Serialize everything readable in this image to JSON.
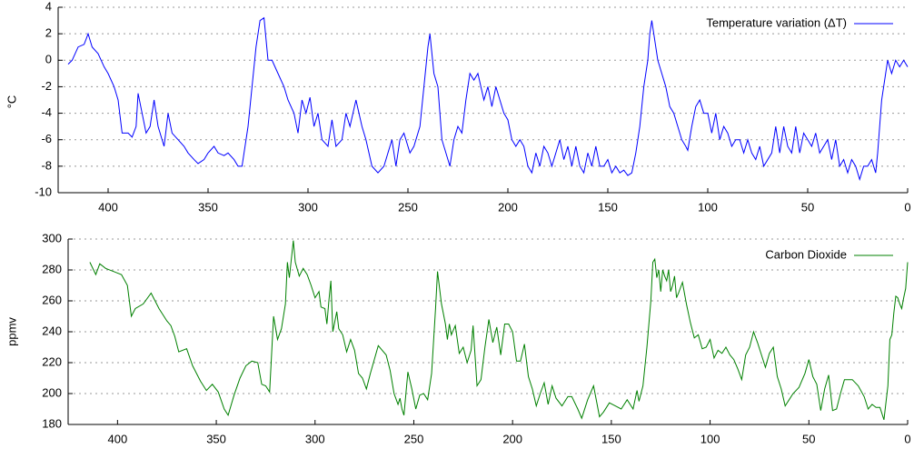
{
  "chart_data": [
    {
      "type": "line",
      "ylabel": "°C",
      "legend": "upper right",
      "grid": true,
      "xlim": [
        425,
        0
      ],
      "ylim": [
        -10,
        4
      ],
      "xticks": [
        400,
        350,
        300,
        250,
        200,
        150,
        100,
        50,
        0
      ],
      "yticks": [
        4,
        2,
        0,
        -2,
        -4,
        -6,
        -8,
        -10
      ],
      "x": [
        420,
        418,
        415,
        412,
        410,
        408,
        405,
        402,
        400,
        397,
        395,
        393,
        390,
        388,
        386,
        385,
        383,
        381,
        379,
        377,
        375,
        372,
        370,
        368,
        365,
        362,
        360,
        357,
        355,
        352,
        350,
        347,
        345,
        342,
        340,
        337,
        335,
        333,
        330,
        328,
        326,
        324,
        322,
        320,
        318,
        315,
        312,
        310,
        307,
        305,
        303,
        301,
        299,
        297,
        295,
        293,
        290,
        288,
        286,
        283,
        281,
        279,
        276,
        273,
        271,
        268,
        265,
        262,
        260,
        258,
        256,
        254,
        252,
        249,
        247,
        244,
        242,
        240,
        239,
        237,
        235,
        233,
        231,
        229,
        227,
        225,
        223,
        221,
        219,
        217,
        215,
        212,
        210,
        208,
        206,
        204,
        202,
        200,
        198,
        196,
        194,
        192,
        190,
        188,
        186,
        184,
        182,
        180,
        178,
        176,
        174,
        172,
        170,
        168,
        166,
        164,
        162,
        160,
        158,
        156,
        154,
        152,
        150,
        148,
        146,
        144,
        142,
        140,
        138,
        136,
        134,
        132,
        130,
        129,
        128,
        127,
        125,
        123,
        121,
        119,
        117,
        115,
        113,
        111,
        110,
        108,
        106,
        104,
        102,
        100,
        98,
        96,
        94,
        92,
        90,
        88,
        86,
        84,
        82,
        80,
        78,
        76,
        74,
        72,
        70,
        68,
        66,
        64,
        62,
        60,
        58,
        56,
        54,
        52,
        50,
        48,
        46,
        44,
        42,
        40,
        38,
        36,
        34,
        32,
        30,
        28,
        26,
        24,
        22,
        20,
        18,
        16,
        15,
        14,
        13,
        12,
        11,
        10,
        8,
        6,
        4,
        2,
        0
      ],
      "series": [
        {
          "name": "Temperature variation (ΔT)",
          "color": "#0000ff",
          "values": [
            -0.3,
            0,
            1,
            1.2,
            2,
            1,
            0.5,
            -0.5,
            -1,
            -2,
            -3,
            -5.5,
            -5.5,
            -5.8,
            -5,
            -2.5,
            -4,
            -5.5,
            -5,
            -3,
            -5,
            -6.5,
            -4,
            -5.5,
            -6,
            -6.5,
            -7,
            -7.5,
            -7.8,
            -7.5,
            -7,
            -6.5,
            -7,
            -7.2,
            -7,
            -7.5,
            -8,
            -8,
            -5,
            -2,
            1,
            3,
            3.2,
            0,
            0,
            -1,
            -2,
            -3,
            -4,
            -5.5,
            -3,
            -4,
            -2.8,
            -5,
            -4,
            -6,
            -6.5,
            -4.5,
            -6.5,
            -6,
            -4,
            -5,
            -3,
            -5,
            -6,
            -8,
            -8.5,
            -8,
            -7,
            -6,
            -8,
            -6,
            -5.5,
            -7,
            -6.5,
            -5,
            -2,
            1,
            2,
            -1,
            -2,
            -6,
            -7,
            -8,
            -6,
            -5,
            -5.5,
            -3,
            -1,
            -1.5,
            -1,
            -3,
            -2,
            -3.5,
            -2,
            -3,
            -4,
            -4.5,
            -6,
            -6.5,
            -6,
            -6.5,
            -8,
            -8.5,
            -7,
            -8,
            -6.5,
            -7,
            -8,
            -7,
            -6,
            -7.5,
            -6.5,
            -8,
            -6.5,
            -8,
            -8.5,
            -7,
            -8,
            -6.5,
            -8,
            -8,
            -7.5,
            -8.5,
            -8,
            -8.5,
            -8.3,
            -8.7,
            -8.5,
            -7,
            -5,
            -2,
            0,
            2,
            3,
            2,
            0,
            -1,
            -2,
            -3.5,
            -4,
            -5,
            -6,
            -6.5,
            -6.8,
            -5,
            -3.5,
            -3,
            -4,
            -4,
            -5.5,
            -4,
            -6,
            -5,
            -5.5,
            -6.5,
            -6,
            -6,
            -7,
            -6,
            -7,
            -7.5,
            -6.5,
            -8,
            -7.5,
            -7,
            -5,
            -7,
            -5,
            -6.5,
            -7,
            -5,
            -7,
            -5.5,
            -6,
            -6.5,
            -5.5,
            -7,
            -6.5,
            -6,
            -7.5,
            -6,
            -8,
            -7.5,
            -8.5,
            -7.5,
            -8,
            -9,
            -8,
            -8,
            -7.5,
            -8.5,
            -7,
            -5,
            -3,
            -2,
            -1,
            0,
            -1,
            0,
            -0.5,
            0,
            -0.5
          ]
        }
      ]
    },
    {
      "type": "line",
      "ylabel": "ppmv",
      "legend": "upper right",
      "grid": true,
      "xlim": [
        425,
        0
      ],
      "ylim": [
        180,
        300
      ],
      "xticks": [
        400,
        350,
        300,
        250,
        200,
        150,
        100,
        50,
        0
      ],
      "yticks": [
        300,
        280,
        260,
        240,
        220,
        200,
        180
      ],
      "x": [
        414,
        411,
        409,
        406,
        402,
        398,
        395,
        393,
        391,
        387,
        383,
        379,
        375,
        373,
        371,
        369,
        365,
        362,
        358,
        355,
        352,
        349,
        346,
        344,
        341,
        338,
        335,
        332,
        329,
        327,
        325,
        323,
        321,
        319,
        317,
        315,
        314,
        313,
        311,
        310,
        308,
        306,
        304,
        302,
        300,
        298,
        297,
        295,
        294,
        293,
        292,
        291,
        289,
        288,
        286,
        284,
        282,
        280,
        278,
        276,
        274,
        272,
        270,
        268,
        266,
        264,
        262,
        260,
        258,
        257,
        256,
        255,
        253,
        251,
        249,
        247,
        245,
        243,
        241,
        239,
        238,
        236,
        234,
        233,
        232,
        231,
        229,
        227,
        225,
        223,
        221,
        220,
        218,
        216,
        214,
        212,
        210,
        208,
        206,
        204,
        202,
        200,
        198,
        196,
        194,
        192,
        190,
        188,
        186,
        184,
        182,
        180,
        178,
        175,
        172,
        170,
        167,
        165,
        162,
        159,
        156,
        154,
        151,
        148,
        145,
        142,
        139,
        138,
        137,
        136,
        134,
        132,
        130,
        129,
        128,
        127,
        126,
        125,
        124,
        123,
        122,
        121,
        120,
        119,
        118,
        117,
        116,
        114,
        112,
        110,
        108,
        106,
        104,
        102,
        100,
        98,
        96,
        94,
        92,
        90,
        88,
        86,
        84,
        82,
        80,
        78,
        76,
        74,
        72,
        70,
        68,
        66,
        64,
        62,
        60,
        58,
        55,
        52,
        50,
        48,
        46,
        44,
        42,
        40,
        38,
        36,
        34,
        32,
        28,
        25,
        22,
        20,
        18,
        16,
        14,
        12,
        10,
        9,
        8,
        7,
        6,
        5,
        4,
        3,
        2,
        1,
        0
      ],
      "series": [
        {
          "name": "Carbon Dioxide",
          "color": "#008000",
          "values": [
            285,
            277,
            284,
            281,
            279,
            277,
            270,
            250,
            255,
            258,
            265,
            255,
            247,
            244,
            237,
            227,
            229,
            218,
            208,
            202,
            206,
            201,
            190,
            186,
            199,
            210,
            218,
            221,
            220,
            206,
            205,
            201,
            250,
            235,
            242,
            258,
            285,
            275,
            299,
            285,
            276,
            281,
            277,
            270,
            262,
            266,
            256,
            255,
            245,
            260,
            273,
            240,
            253,
            242,
            238,
            227,
            235,
            228,
            213,
            210,
            203,
            213,
            222,
            231,
            228,
            225,
            215,
            200,
            193,
            197,
            190,
            186,
            214,
            203,
            190,
            199,
            200,
            196,
            213,
            255,
            279,
            258,
            245,
            235,
            245,
            238,
            244,
            226,
            230,
            220,
            228,
            244,
            205,
            209,
            230,
            248,
            233,
            243,
            225,
            245,
            245,
            240,
            221,
            221,
            232,
            211,
            203,
            192,
            200,
            207,
            193,
            205,
            197,
            192,
            198,
            198,
            190,
            184,
            196,
            205,
            185,
            188,
            194,
            192,
            190,
            196,
            190,
            196,
            202,
            195,
            205,
            230,
            260,
            285,
            287,
            275,
            280,
            266,
            280,
            276,
            273,
            280,
            266,
            270,
            276,
            262,
            265,
            272,
            258,
            246,
            236,
            238,
            229,
            230,
            235,
            223,
            228,
            226,
            230,
            225,
            222,
            216,
            209,
            225,
            230,
            240,
            233,
            225,
            217,
            226,
            230,
            211,
            203,
            192,
            196,
            200,
            204,
            213,
            222,
            211,
            206,
            189,
            203,
            212,
            189,
            190,
            200,
            209,
            209,
            205,
            198,
            190,
            193,
            191,
            191,
            183,
            205,
            235,
            238,
            252,
            263,
            262,
            258,
            255,
            262,
            268,
            285
          ]
        }
      ]
    }
  ]
}
